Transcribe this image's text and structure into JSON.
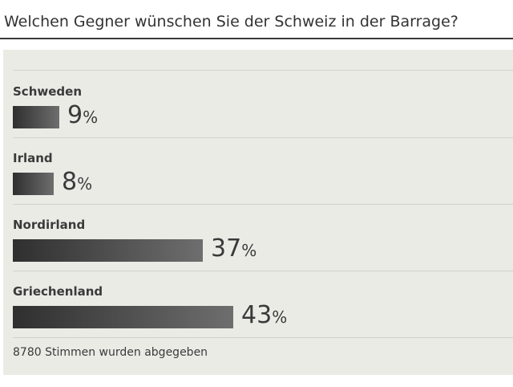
{
  "poll": {
    "question": "Welchen Gegner wünschen Sie der Schweiz in der Barrage?",
    "options": [
      {
        "label": "Schweden",
        "percent": 9
      },
      {
        "label": "Irland",
        "percent": 8
      },
      {
        "label": "Nordirland",
        "percent": 37
      },
      {
        "label": "Griechenland",
        "percent": 43
      }
    ],
    "percent_sign": "%",
    "votes_text": "8780 Stimmen wurden abgegeben"
  },
  "colors": {
    "bar_start": "#2f2f2f",
    "bar_end": "#6e6e6e",
    "panel_bg": "#ebebe6",
    "text": "#3a3a3a"
  }
}
